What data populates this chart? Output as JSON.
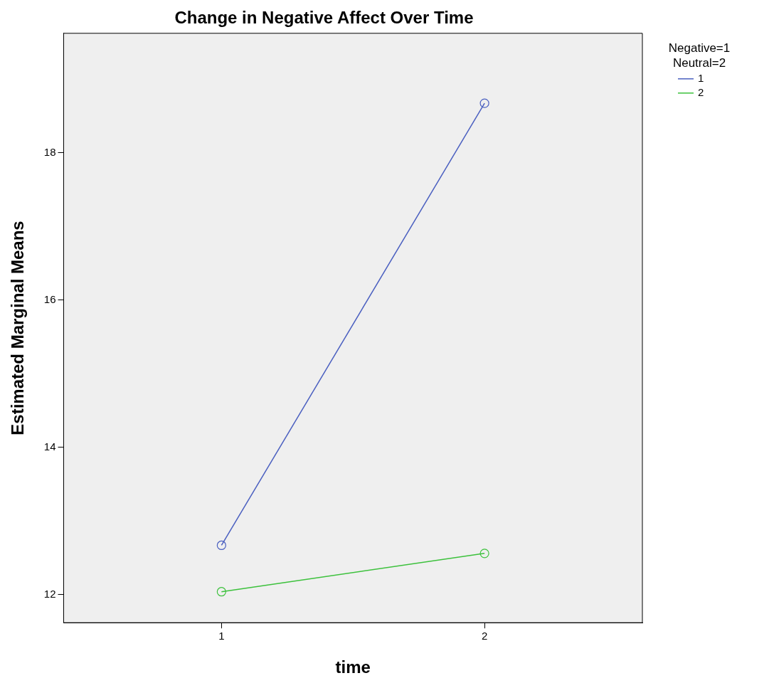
{
  "chart_data": {
    "type": "line",
    "title": "Change in Negative Affect Over Time",
    "xlabel": "time",
    "ylabel": "Estimated Marginal Means",
    "legend_title": "Negative=1\nNeutral=2",
    "legend": "top right",
    "x": [
      1,
      2
    ],
    "xlim": [
      0.4,
      2.6
    ],
    "xticks": [
      1,
      2
    ],
    "ylim": [
      11.62,
      19.62
    ],
    "yticks": [
      12,
      14,
      16,
      18
    ],
    "grid": false,
    "marker": "circle",
    "line_style": "solid",
    "series": [
      {
        "name": "1",
        "color": "#4a5fc0",
        "values": [
          12.67,
          18.67
        ]
      },
      {
        "name": "2",
        "color": "#3cc13c",
        "values": [
          12.04,
          12.56
        ]
      }
    ]
  }
}
